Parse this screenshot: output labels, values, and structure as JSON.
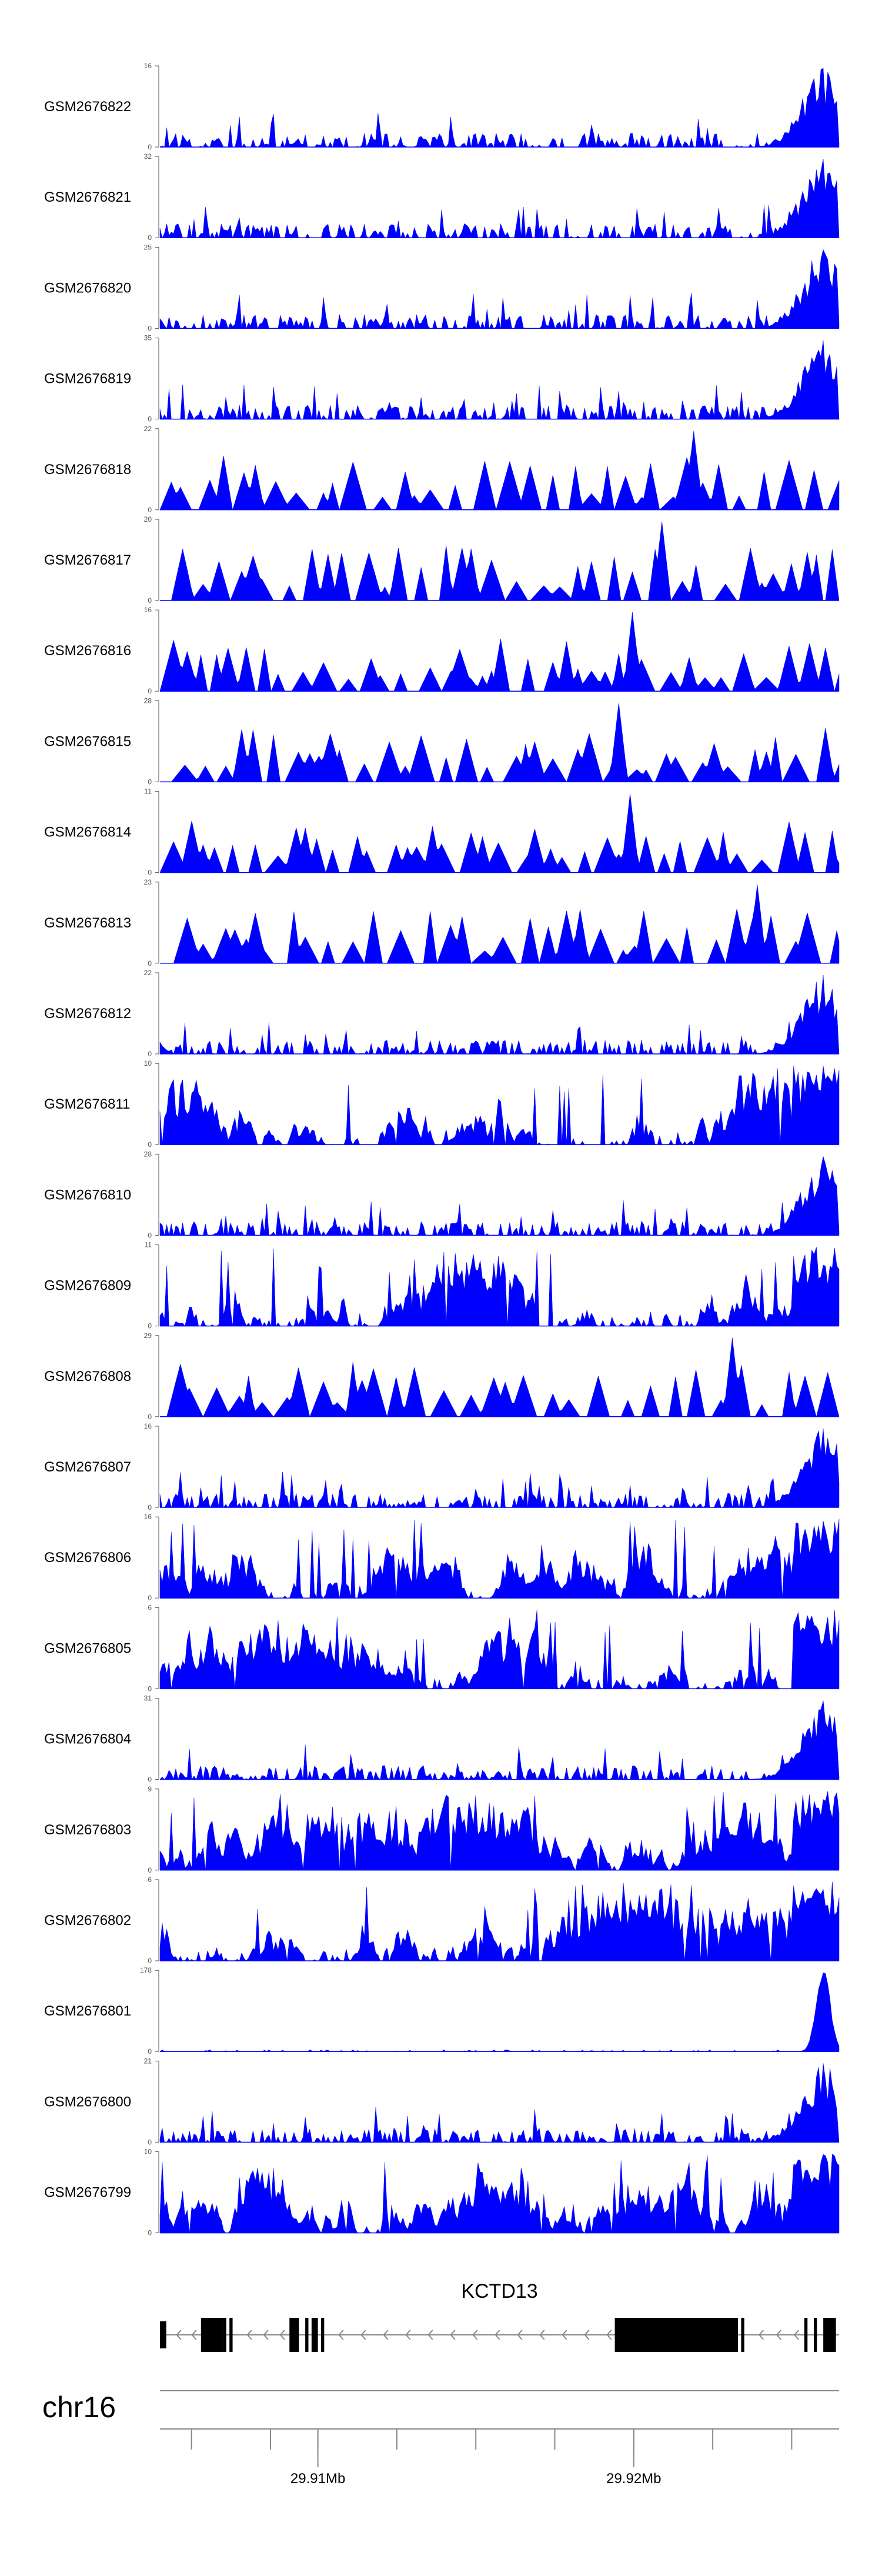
{
  "colors": {
    "signal": "#0000ff",
    "axis": "#555555",
    "gene": "#000000",
    "intron_arrow": "#888888"
  },
  "chart_data": {
    "type": "area",
    "title": "",
    "xlabel": "",
    "ylabel": "",
    "grid": false,
    "legend": "none",
    "x_range_mb": [
      29.905,
      29.9265
    ],
    "chromosome": "chr16",
    "tracks": [
      {
        "name": "GSM2676822",
        "ymax_label": "16",
        "ymin_label": "0",
        "ymax": 16,
        "profile": "rightpeak",
        "seed": 22
      },
      {
        "name": "GSM2676821",
        "ymax_label": "32",
        "ymin_label": "0",
        "ymax": 32,
        "profile": "rightpeak",
        "seed": 21
      },
      {
        "name": "GSM2676820",
        "ymax_label": "25",
        "ymin_label": "0",
        "ymax": 25,
        "profile": "rightpeak",
        "seed": 20
      },
      {
        "name": "GSM2676819",
        "ymax_label": "35",
        "ymin_label": "0",
        "ymax": 35,
        "profile": "rightpeak",
        "seed": 19
      },
      {
        "name": "GSM2676818",
        "ymax_label": "22",
        "ymin_label": "0",
        "ymax": 22,
        "profile": "spiky",
        "seed": 18
      },
      {
        "name": "GSM2676817",
        "ymax_label": "20",
        "ymin_label": "0",
        "ymax": 20,
        "profile": "spiky",
        "seed": 17
      },
      {
        "name": "GSM2676816",
        "ymax_label": "16",
        "ymin_label": "0",
        "ymax": 16,
        "profile": "spiky",
        "seed": 16
      },
      {
        "name": "GSM2676815",
        "ymax_label": "28",
        "ymin_label": "0",
        "ymax": 28,
        "profile": "spiky",
        "seed": 15
      },
      {
        "name": "GSM2676814",
        "ymax_label": "11",
        "ymin_label": "0",
        "ymax": 11,
        "profile": "spiky",
        "seed": 14
      },
      {
        "name": "GSM2676813",
        "ymax_label": "23",
        "ymin_label": "0",
        "ymax": 23,
        "profile": "spiky",
        "seed": 13
      },
      {
        "name": "GSM2676812",
        "ymax_label": "22",
        "ymin_label": "0",
        "ymax": 22,
        "profile": "rightpeak",
        "seed": 12
      },
      {
        "name": "GSM2676811",
        "ymax_label": "10",
        "ymin_label": "0",
        "ymax": 10,
        "profile": "dense",
        "seed": 11
      },
      {
        "name": "GSM2676810",
        "ymax_label": "28",
        "ymin_label": "0",
        "ymax": 28,
        "profile": "rightpeak",
        "seed": 10
      },
      {
        "name": "GSM2676809",
        "ymax_label": "11",
        "ymin_label": "0",
        "ymax": 11,
        "profile": "dense",
        "seed": 9
      },
      {
        "name": "GSM2676808",
        "ymax_label": "29",
        "ymin_label": "0",
        "ymax": 29,
        "profile": "spiky",
        "seed": 8
      },
      {
        "name": "GSM2676807",
        "ymax_label": "16",
        "ymin_label": "0",
        "ymax": 16,
        "profile": "rightpeak",
        "seed": 7
      },
      {
        "name": "GSM2676806",
        "ymax_label": "16",
        "ymin_label": "0",
        "ymax": 16,
        "profile": "dense",
        "seed": 6
      },
      {
        "name": "GSM2676805",
        "ymax_label": "6",
        "ymin_label": "0",
        "ymax": 6,
        "profile": "dense",
        "seed": 5
      },
      {
        "name": "GSM2676804",
        "ymax_label": "31",
        "ymin_label": "0",
        "ymax": 31,
        "profile": "rightpeak",
        "seed": 4
      },
      {
        "name": "GSM2676803",
        "ymax_label": "9",
        "ymin_label": "0",
        "ymax": 9,
        "profile": "dense",
        "seed": 3
      },
      {
        "name": "GSM2676802",
        "ymax_label": "6",
        "ymin_label": "0",
        "ymax": 6,
        "profile": "dense",
        "seed": 2
      },
      {
        "name": "GSM2676801",
        "ymax_label": "178",
        "ymin_label": "0",
        "ymax": 178,
        "profile": "bigpeak",
        "seed": 1
      },
      {
        "name": "GSM2676800",
        "ymax_label": "21",
        "ymin_label": "0",
        "ymax": 21,
        "profile": "rightpeak",
        "seed": 100
      },
      {
        "name": "GSM2676799",
        "ymax_label": "10",
        "ymin_label": "0",
        "ymax": 10,
        "profile": "dense",
        "seed": 99
      }
    ],
    "gene": {
      "name": "KCTD13",
      "strand": "-",
      "start_mb": 29.905,
      "end_mb": 29.9265,
      "exons_mb": [
        [
          29.905,
          29.9052,
          "thin"
        ],
        [
          29.9063,
          29.907,
          "thick"
        ],
        [
          29.907,
          29.9071,
          "thick"
        ],
        [
          29.9072,
          29.9073,
          "thick"
        ],
        [
          29.9091,
          29.9094,
          "thick"
        ],
        [
          29.9096,
          29.9097,
          "thick"
        ],
        [
          29.9098,
          29.91,
          "thick"
        ],
        [
          29.9101,
          29.9102,
          "thick"
        ],
        [
          29.9194,
          29.9233,
          "thick"
        ],
        [
          29.9234,
          29.9235,
          "thick"
        ],
        [
          29.9254,
          29.9255,
          "thick"
        ],
        [
          29.9257,
          29.9258,
          "thick"
        ],
        [
          29.926,
          29.9264,
          "thick"
        ]
      ]
    },
    "axis": {
      "tick_labels": [
        {
          "mb": 29.91,
          "label": "29.91Mb"
        },
        {
          "mb": 29.92,
          "label": "29.92Mb"
        }
      ],
      "minor_ticks_mb": [
        29.906,
        29.9085,
        29.91,
        29.9125,
        29.915,
        29.9175,
        29.92,
        29.9225,
        29.925
      ]
    }
  }
}
